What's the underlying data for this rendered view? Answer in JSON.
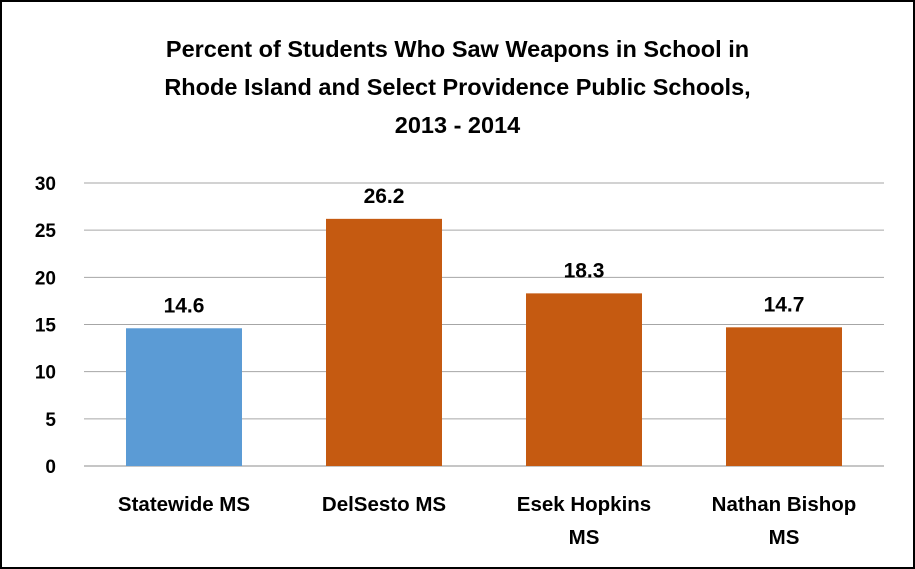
{
  "chart_data": {
    "type": "bar",
    "title": [
      "Percent of Students Who Saw Weapons in School in",
      "Rhode Island and Select Providence Public Schools,",
      "2013 - 2014"
    ],
    "categories": [
      [
        "Statewide MS"
      ],
      [
        "DelSesto MS"
      ],
      [
        "Esek Hopkins",
        "MS"
      ],
      [
        "Nathan Bishop",
        "MS"
      ]
    ],
    "values": [
      14.6,
      26.2,
      18.3,
      14.7
    ],
    "data_labels": [
      "14.6",
      "26.2",
      "18.3",
      "14.7"
    ],
    "bar_colors": [
      "#5b9bd5",
      "#c55a11",
      "#c55a11",
      "#c55a11"
    ],
    "ylim": [
      0,
      30
    ],
    "yticks": [
      0,
      5,
      10,
      15,
      20,
      25,
      30
    ],
    "grid": true,
    "legend": "none"
  }
}
